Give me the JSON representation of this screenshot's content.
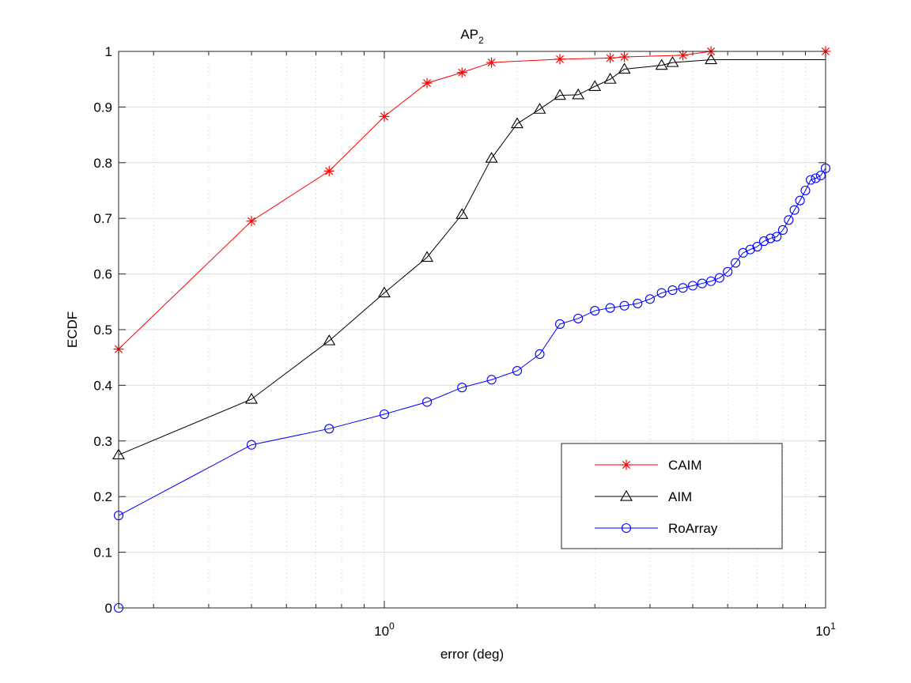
{
  "chart_data": {
    "type": "line",
    "title": "AP",
    "title_subscript": "2",
    "xlabel": "error (deg)",
    "ylabel": "ECDF",
    "xscale": "log",
    "xlim": [
      0.25,
      10
    ],
    "ylim": [
      0,
      1
    ],
    "y_ticks": [
      "0",
      "0.1",
      "0.2",
      "0.3",
      "0.4",
      "0.5",
      "0.6",
      "0.7",
      "0.8",
      "0.9",
      "1"
    ],
    "x_ticks": [
      {
        "value": 1,
        "base": "10",
        "exp": "0"
      },
      {
        "value": 10,
        "base": "10",
        "exp": "1"
      }
    ],
    "grid": true,
    "legend_position": "lower-right",
    "series": [
      {
        "name": "CAIM",
        "color": "#ff0000",
        "marker": "asterisk",
        "x": [
          0.25,
          0.5,
          0.75,
          1.0,
          1.25,
          1.5,
          1.75,
          2.5,
          3.25,
          3.5,
          4.75,
          5.5,
          10
        ],
        "y": [
          0.465,
          0.695,
          0.785,
          0.883,
          0.943,
          0.962,
          0.98,
          0.986,
          0.988,
          0.99,
          0.993,
          1.0,
          1.0
        ]
      },
      {
        "name": "AIM",
        "color": "#000000",
        "marker": "triangle",
        "x": [
          0.25,
          0.5,
          0.75,
          1.0,
          1.25,
          1.5,
          1.75,
          2.0,
          2.25,
          2.5,
          2.75,
          3.0,
          3.25,
          3.5,
          4.25,
          4.5,
          5.5,
          10
        ],
        "y": [
          0.275,
          0.375,
          0.48,
          0.566,
          0.63,
          0.707,
          0.808,
          0.87,
          0.896,
          0.921,
          0.922,
          0.937,
          0.95,
          0.968,
          0.975,
          0.98,
          0.985,
          0.985
        ]
      },
      {
        "name": "RoArray",
        "color": "#0000ff",
        "marker": "circle",
        "x": [
          0.25,
          0.25,
          0.5,
          0.75,
          1.0,
          1.25,
          1.5,
          1.75,
          2.0,
          2.25,
          2.5,
          2.75,
          3.0,
          3.25,
          3.5,
          3.75,
          4.0,
          4.25,
          4.5,
          4.75,
          5.0,
          5.25,
          5.5,
          5.75,
          6.0,
          6.25,
          6.5,
          6.75,
          7.0,
          7.25,
          7.5,
          7.75,
          8.0,
          8.25,
          8.5,
          8.75,
          9.0,
          9.25,
          9.5,
          9.75,
          10.0
        ],
        "y": [
          0.0,
          0.166,
          0.293,
          0.322,
          0.348,
          0.37,
          0.396,
          0.41,
          0.426,
          0.456,
          0.51,
          0.52,
          0.534,
          0.539,
          0.543,
          0.547,
          0.555,
          0.566,
          0.571,
          0.575,
          0.579,
          0.583,
          0.587,
          0.593,
          0.604,
          0.62,
          0.638,
          0.644,
          0.649,
          0.659,
          0.664,
          0.667,
          0.679,
          0.697,
          0.715,
          0.732,
          0.75,
          0.769,
          0.772,
          0.777,
          0.79
        ]
      }
    ]
  }
}
